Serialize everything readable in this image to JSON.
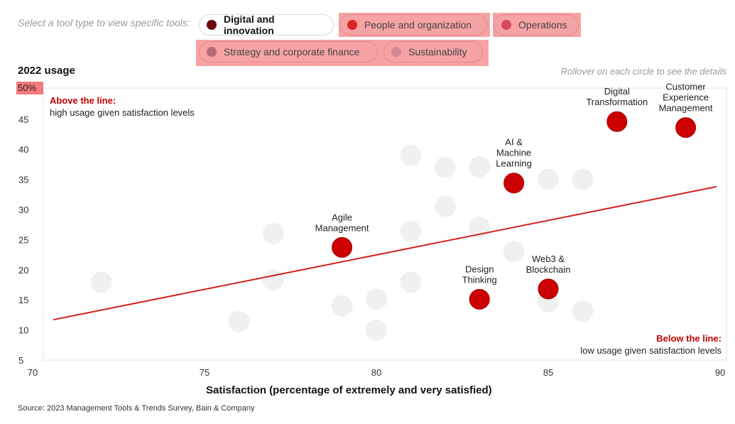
{
  "filter": {
    "prompt": "Select a tool type to view specific tools:",
    "buttons": [
      {
        "label": "Digital and innovation",
        "color": "#6b0a0a",
        "active": true
      },
      {
        "label": "People and organization",
        "color": "#d9262b",
        "active": false
      },
      {
        "label": "Operations",
        "color": "#d9485f",
        "active": false
      },
      {
        "label": "Strategy and corporate finance",
        "color": "#b86a78",
        "active": false
      },
      {
        "label": "Sustainability",
        "color": "#d38a97",
        "active": false
      }
    ]
  },
  "usage_title": "2022 usage",
  "rollover_note": "Rollover on each circle to see the details",
  "above_note": {
    "heading": "Above the line:",
    "text": "high usage given satisfaction levels"
  },
  "below_note": {
    "heading": "Below the line:",
    "text": "low usage given satisfaction levels"
  },
  "source": "Source: 2023 Management Tools & Trends Survey, Bain & Company",
  "colors": {
    "highlight": "#cc0000",
    "muted": "#f0f0f0",
    "line": "#d42020",
    "axis": "#e3e3e3"
  },
  "chart_data": {
    "type": "scatter",
    "xlabel": "Satisfaction (percentage of extremely and very satisfied)",
    "ylabel": "2022 usage",
    "xlim": [
      70,
      90
    ],
    "ylim": [
      5,
      50
    ],
    "xticks": [
      "70",
      "75",
      "80",
      "85",
      "90"
    ],
    "yticks": [
      "50%",
      "45",
      "40",
      "35",
      "30",
      "25",
      "20",
      "15",
      "10",
      "5"
    ],
    "highlighted": [
      {
        "label": [
          "Agile",
          "Management"
        ],
        "x": 79,
        "y": 23.7
      },
      {
        "label": [
          "Design",
          "Thinking"
        ],
        "x": 83,
        "y": 15.1
      },
      {
        "label": [
          "AI &",
          "Machine",
          "Learning"
        ],
        "x": 84,
        "y": 34.4
      },
      {
        "label": [
          "Web3 &",
          "Blockchain"
        ],
        "x": 85,
        "y": 16.8
      },
      {
        "label": [
          "Digital",
          "Transformation"
        ],
        "x": 87,
        "y": 44.6
      },
      {
        "label": [
          "Customer",
          "Experience",
          "Management"
        ],
        "x": 89,
        "y": 43.6
      }
    ],
    "other": [
      {
        "x": 72,
        "y": 17.9
      },
      {
        "x": 76,
        "y": 11.4
      },
      {
        "x": 77,
        "y": 26.0
      },
      {
        "x": 77,
        "y": 18.3
      },
      {
        "x": 79,
        "y": 14.0
      },
      {
        "x": 80,
        "y": 15.1
      },
      {
        "x": 80,
        "y": 10.0
      },
      {
        "x": 81,
        "y": 39.0
      },
      {
        "x": 81,
        "y": 26.4
      },
      {
        "x": 81,
        "y": 17.9
      },
      {
        "x": 82,
        "y": 37.0
      },
      {
        "x": 82,
        "y": 30.5
      },
      {
        "x": 83,
        "y": 37.1
      },
      {
        "x": 83,
        "y": 27.0
      },
      {
        "x": 84,
        "y": 23.0
      },
      {
        "x": 85,
        "y": 35.0
      },
      {
        "x": 85,
        "y": 14.7
      },
      {
        "x": 86,
        "y": 35.0
      },
      {
        "x": 86,
        "y": 13.1
      }
    ],
    "trendline": {
      "x": [
        70.6,
        89.9
      ],
      "y": [
        11.7,
        33.8
      ]
    }
  }
}
